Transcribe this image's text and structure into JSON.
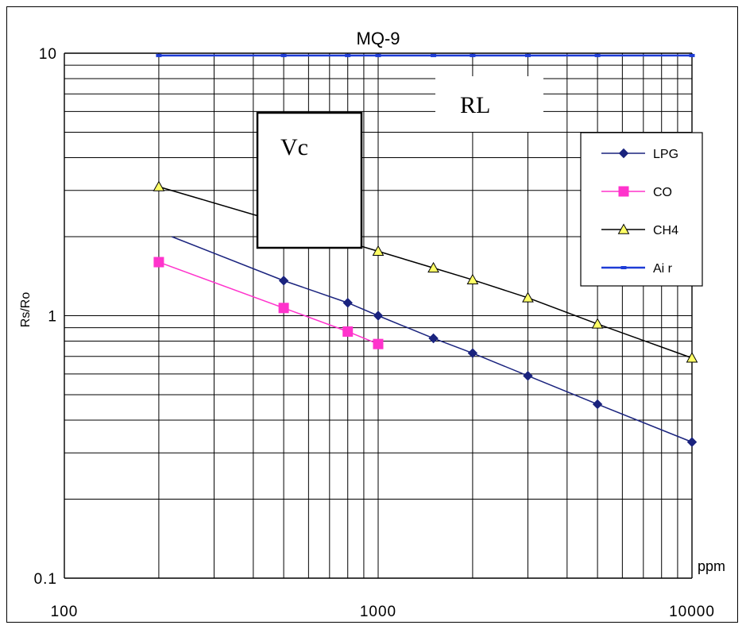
{
  "chart_data": {
    "type": "line",
    "title": "MQ-9",
    "xlabel": "ppm",
    "ylabel": "Rs/Ro",
    "x_scale": "log",
    "y_scale": "log",
    "xlim": [
      100,
      10000
    ],
    "ylim": [
      0.1,
      10
    ],
    "x_ticks": [
      "100",
      "1000",
      "10000"
    ],
    "y_ticks": [
      "0.1",
      "1",
      "10"
    ],
    "grid": true,
    "legend_position": "right",
    "annotations": [
      "Vc",
      "RL"
    ],
    "series": [
      {
        "name": "LPG",
        "color": "#1a237e",
        "marker": "diamond",
        "x": [
          220,
          500,
          800,
          1000,
          1500,
          2000,
          3000,
          5000,
          10000
        ],
        "y": [
          2.0,
          1.36,
          1.12,
          1.0,
          0.82,
          0.72,
          0.59,
          0.46,
          0.33
        ],
        "markers_from_index": 1
      },
      {
        "name": "CO",
        "color": "#ff33cc",
        "marker": "square",
        "x": [
          200,
          500,
          800,
          1000
        ],
        "y": [
          1.6,
          1.07,
          0.87,
          0.78
        ]
      },
      {
        "name": "CH4",
        "color": "#000000",
        "marker_fill": "#ffff66",
        "marker": "triangle",
        "x": [
          200,
          1000,
          1500,
          2000,
          3000,
          5000,
          10000
        ],
        "y": [
          3.1,
          1.76,
          1.52,
          1.37,
          1.17,
          0.93,
          0.69
        ]
      },
      {
        "name": "Ai r",
        "color": "#1e3cd6",
        "marker": "square",
        "x": [
          200,
          500,
          800,
          1000,
          1500,
          2000,
          3000,
          5000,
          10000
        ],
        "y": [
          9.8,
          9.8,
          9.8,
          9.8,
          9.8,
          9.8,
          9.8,
          9.8,
          9.8
        ]
      }
    ]
  }
}
